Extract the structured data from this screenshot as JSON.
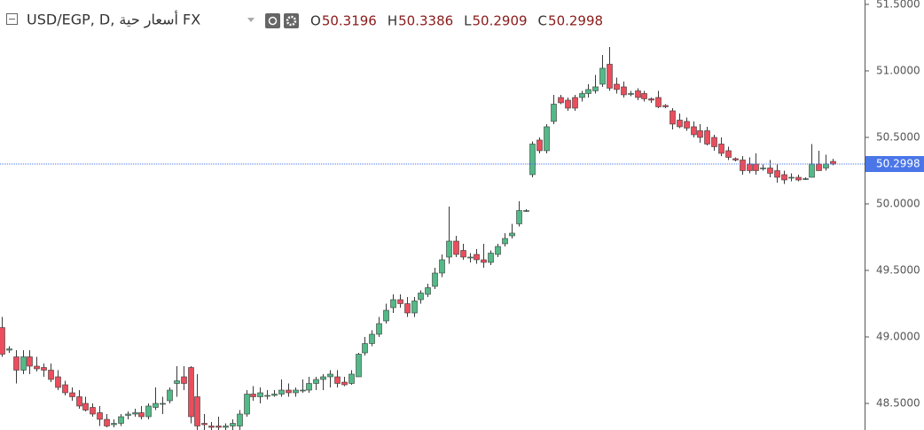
{
  "chart_data": {
    "type": "candlestick",
    "title": "USD/EGP, D, أسعار حية FX",
    "ohlc_keys": [
      "O",
      "H",
      "L",
      "C"
    ],
    "up_color": "#53b987",
    "down_color": "#eb4d5c",
    "wick_color": "#3a3a3a",
    "last_color": "#4a76e8",
    "ylim": [
      48.3,
      51.533
    ],
    "yticks": [
      {
        "value": 48.5,
        "label": "48.5000"
      },
      {
        "value": 49,
        "label": "49.0000"
      },
      {
        "value": 49.5,
        "label": "49.5000"
      },
      {
        "value": 50,
        "label": "50.0000"
      },
      {
        "value": 50.5,
        "label": "50.5000"
      },
      {
        "value": 51,
        "label": "51.0000"
      },
      {
        "value": 51.5,
        "label": "51.5000"
      }
    ],
    "ohlc": [
      [
        49.07,
        49.15,
        48.85,
        48.87
      ],
      [
        48.9,
        48.93,
        48.88,
        48.91
      ],
      [
        48.85,
        48.9,
        48.65,
        48.75
      ],
      [
        48.75,
        48.9,
        48.72,
        48.85
      ],
      [
        48.85,
        48.9,
        48.72,
        48.78
      ],
      [
        48.78,
        48.85,
        48.74,
        48.76
      ],
      [
        48.77,
        48.8,
        48.7,
        48.75
      ],
      [
        48.75,
        48.8,
        48.66,
        48.68
      ],
      [
        48.7,
        48.75,
        48.6,
        48.62
      ],
      [
        48.64,
        48.67,
        48.56,
        48.58
      ],
      [
        48.58,
        48.62,
        48.52,
        48.55
      ],
      [
        48.55,
        48.6,
        48.46,
        48.48
      ],
      [
        48.5,
        48.55,
        48.44,
        48.45
      ],
      [
        48.47,
        48.5,
        48.4,
        48.42
      ],
      [
        48.43,
        48.48,
        48.33,
        48.38
      ],
      [
        48.38,
        48.42,
        48.32,
        48.33
      ],
      [
        48.34,
        48.38,
        48.32,
        48.35
      ],
      [
        48.35,
        48.42,
        48.33,
        48.4
      ],
      [
        48.41,
        48.44,
        48.38,
        48.42
      ],
      [
        48.42,
        48.46,
        48.4,
        48.43
      ],
      [
        48.43,
        48.48,
        48.38,
        48.4
      ],
      [
        48.4,
        48.5,
        48.38,
        48.48
      ],
      [
        48.47,
        48.62,
        48.45,
        48.5
      ],
      [
        48.5,
        48.55,
        48.42,
        48.5
      ],
      [
        48.52,
        48.62,
        48.5,
        48.6
      ],
      [
        48.65,
        48.78,
        48.55,
        48.67
      ],
      [
        48.7,
        48.78,
        48.6,
        48.65
      ],
      [
        48.77,
        48.78,
        48.35,
        48.4
      ],
      [
        48.55,
        48.72,
        48.3,
        48.33
      ],
      [
        48.35,
        48.42,
        48.3,
        48.34
      ],
      [
        48.33,
        48.36,
        48.3,
        48.32
      ],
      [
        48.33,
        48.4,
        48.3,
        48.32
      ],
      [
        48.32,
        48.35,
        48.3,
        48.33
      ],
      [
        48.33,
        48.38,
        48.3,
        48.35
      ],
      [
        48.33,
        48.45,
        48.3,
        48.42
      ],
      [
        48.42,
        48.6,
        48.4,
        48.57
      ],
      [
        48.57,
        48.63,
        48.52,
        48.55
      ],
      [
        48.55,
        48.62,
        48.5,
        48.58
      ],
      [
        48.56,
        48.6,
        48.53,
        48.56
      ],
      [
        48.56,
        48.6,
        48.55,
        48.57
      ],
      [
        48.57,
        48.68,
        48.55,
        48.6
      ],
      [
        48.6,
        48.65,
        48.55,
        48.58
      ],
      [
        48.58,
        48.62,
        48.55,
        48.6
      ],
      [
        48.6,
        48.68,
        48.58,
        48.6
      ],
      [
        48.6,
        48.7,
        48.58,
        48.65
      ],
      [
        48.65,
        48.7,
        48.6,
        48.68
      ],
      [
        48.68,
        48.72,
        48.6,
        48.7
      ],
      [
        48.7,
        48.75,
        48.62,
        48.72
      ],
      [
        48.7,
        48.75,
        48.62,
        48.65
      ],
      [
        48.66,
        48.7,
        48.63,
        48.64
      ],
      [
        48.65,
        48.75,
        48.64,
        48.72
      ],
      [
        48.7,
        48.88,
        48.7,
        48.87
      ],
      [
        48.88,
        49.0,
        48.86,
        48.95
      ],
      [
        48.95,
        49.05,
        48.93,
        49.02
      ],
      [
        49.02,
        49.15,
        49.0,
        49.1
      ],
      [
        49.12,
        49.25,
        49.1,
        49.2
      ],
      [
        49.22,
        49.32,
        49.18,
        49.28
      ],
      [
        49.28,
        49.32,
        49.22,
        49.25
      ],
      [
        49.25,
        49.3,
        49.15,
        49.18
      ],
      [
        49.18,
        49.3,
        49.15,
        49.27
      ],
      [
        49.28,
        49.35,
        49.25,
        49.33
      ],
      [
        49.32,
        49.4,
        49.3,
        49.37
      ],
      [
        49.38,
        49.52,
        49.36,
        49.48
      ],
      [
        49.48,
        49.62,
        49.45,
        49.58
      ],
      [
        49.6,
        49.98,
        49.55,
        49.72
      ],
      [
        49.72,
        49.76,
        49.6,
        49.62
      ],
      [
        49.65,
        49.7,
        49.58,
        49.6
      ],
      [
        49.6,
        49.63,
        49.56,
        49.6
      ],
      [
        49.62,
        49.66,
        49.55,
        49.58
      ],
      [
        49.58,
        49.7,
        49.52,
        49.56
      ],
      [
        49.56,
        49.65,
        49.54,
        49.63
      ],
      [
        49.62,
        49.7,
        49.6,
        49.68
      ],
      [
        49.7,
        49.78,
        49.68,
        49.74
      ],
      [
        49.76,
        49.85,
        49.74,
        49.78
      ],
      [
        49.85,
        50.02,
        49.83,
        49.95
      ],
      [
        49.95,
        49.96,
        49.94,
        49.95
      ],
      [
        50.22,
        50.47,
        50.2,
        50.45
      ],
      [
        50.48,
        50.5,
        50.38,
        50.4
      ],
      [
        50.4,
        50.6,
        50.38,
        50.58
      ],
      [
        50.62,
        50.82,
        50.6,
        50.75
      ],
      [
        50.8,
        50.82,
        50.75,
        50.76
      ],
      [
        50.78,
        50.8,
        50.7,
        50.72
      ],
      [
        50.8,
        50.82,
        50.7,
        50.72
      ],
      [
        50.8,
        50.85,
        50.77,
        50.83
      ],
      [
        50.83,
        50.9,
        50.8,
        50.86
      ],
      [
        50.85,
        50.97,
        50.83,
        50.88
      ],
      [
        50.9,
        51.12,
        50.88,
        51.02
      ],
      [
        51.05,
        51.18,
        50.85,
        50.87
      ],
      [
        50.9,
        50.95,
        50.83,
        50.86
      ],
      [
        50.88,
        50.92,
        50.8,
        50.82
      ],
      [
        50.83,
        50.85,
        50.81,
        50.83
      ],
      [
        50.85,
        50.87,
        50.78,
        50.8
      ],
      [
        50.83,
        50.85,
        50.77,
        50.79
      ],
      [
        50.79,
        50.8,
        50.76,
        50.78
      ],
      [
        50.8,
        50.85,
        50.72,
        50.73
      ],
      [
        50.74,
        50.75,
        50.72,
        50.73
      ],
      [
        50.7,
        50.72,
        50.56,
        50.6
      ],
      [
        50.63,
        50.68,
        50.57,
        50.58
      ],
      [
        50.62,
        50.65,
        50.55,
        50.57
      ],
      [
        50.58,
        50.62,
        50.5,
        50.52
      ],
      [
        50.55,
        50.6,
        50.46,
        50.5
      ],
      [
        50.55,
        50.58,
        50.44,
        50.45
      ],
      [
        50.5,
        50.52,
        50.4,
        50.43
      ],
      [
        50.45,
        50.5,
        50.36,
        50.38
      ],
      [
        50.4,
        50.43,
        50.33,
        50.35
      ],
      [
        50.34,
        50.35,
        50.32,
        50.33
      ],
      [
        50.33,
        50.36,
        50.22,
        50.25
      ],
      [
        50.3,
        50.35,
        50.23,
        50.25
      ],
      [
        50.3,
        50.38,
        50.22,
        50.25
      ],
      [
        50.27,
        50.3,
        50.25,
        50.27
      ],
      [
        50.27,
        50.33,
        50.2,
        50.23
      ],
      [
        50.25,
        50.3,
        50.16,
        50.2
      ],
      [
        50.22,
        50.25,
        50.15,
        50.18
      ],
      [
        50.2,
        50.23,
        50.17,
        50.2
      ],
      [
        50.2,
        50.22,
        50.17,
        50.18
      ],
      [
        50.19,
        50.2,
        50.18,
        50.19
      ],
      [
        50.2,
        50.45,
        50.2,
        50.3
      ],
      [
        50.3,
        50.4,
        50.25,
        50.25
      ],
      [
        50.27,
        50.37,
        50.25,
        50.3
      ],
      [
        50.3196,
        50.3386,
        50.2909,
        50.2998
      ]
    ]
  }
}
